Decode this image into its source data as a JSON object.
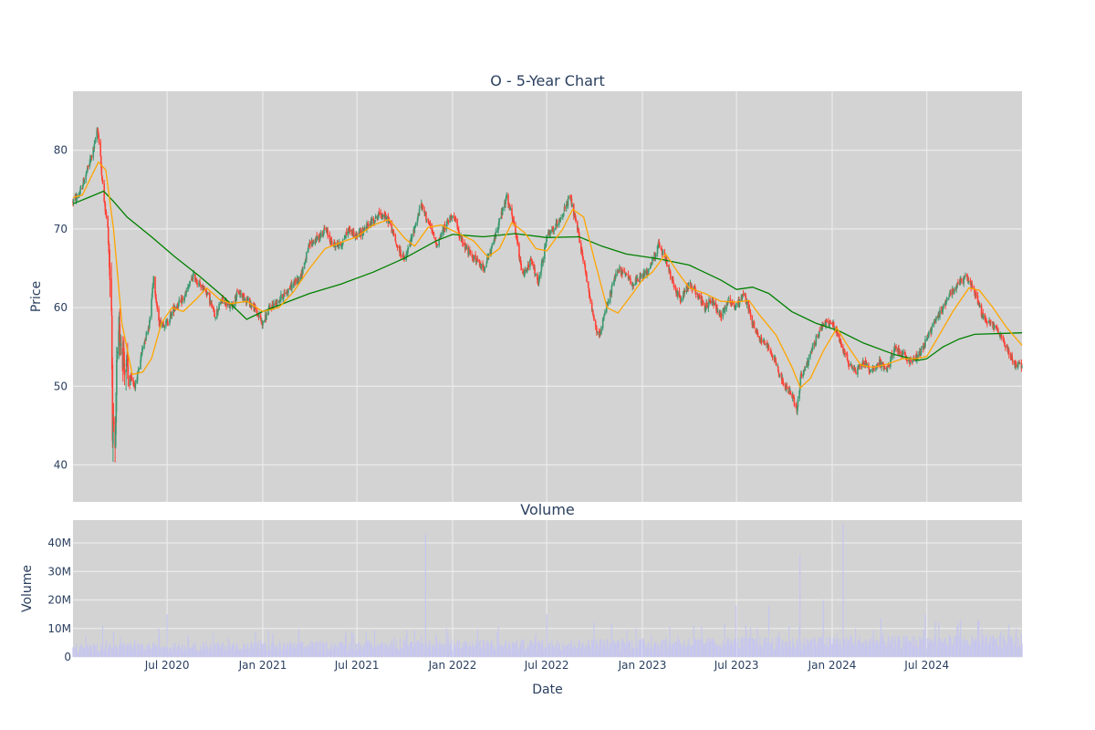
{
  "chart_data": [
    {
      "type": "candlestick",
      "title": "O - 5-Year Chart",
      "ylabel": "Price",
      "ylim": [
        35.3,
        87.5
      ],
      "yticks": [
        40,
        50,
        60,
        70,
        80
      ],
      "xrange": [
        "2020-01-02",
        "2024-12-31"
      ],
      "x_ticks": [
        "2020-07-01",
        "2021-01-01",
        "2021-07-01",
        "2022-01-01",
        "2022-07-01",
        "2023-01-01",
        "2023-07-01",
        "2024-01-01",
        "2024-07-01"
      ],
      "grid": true,
      "background": "#d3d3d3",
      "colors": {
        "up": "#3d9970",
        "down": "#ff4136",
        "ma_short": "#ffa500",
        "ma_long": "#008000"
      },
      "price_path": [
        [
          "2020-01-02",
          73.5
        ],
        [
          "2020-01-15",
          74.5
        ],
        [
          "2020-02-01",
          78
        ],
        [
          "2020-02-12",
          80.5
        ],
        [
          "2020-02-18",
          83
        ],
        [
          "2020-02-24",
          79
        ],
        [
          "2020-03-01",
          74
        ],
        [
          "2020-03-09",
          70
        ],
        [
          "2020-03-16",
          60
        ],
        [
          "2020-03-18",
          45
        ],
        [
          "2020-03-23",
          40.5
        ],
        [
          "2020-03-26",
          52
        ],
        [
          "2020-04-01",
          57
        ],
        [
          "2020-04-10",
          53
        ],
        [
          "2020-04-20",
          51
        ],
        [
          "2020-05-01",
          50
        ],
        [
          "2020-05-15",
          55
        ],
        [
          "2020-05-28",
          58
        ],
        [
          "2020-06-05",
          64
        ],
        [
          "2020-06-15",
          58
        ],
        [
          "2020-07-01",
          58
        ],
        [
          "2020-07-15",
          60
        ],
        [
          "2020-08-01",
          61
        ],
        [
          "2020-08-20",
          64
        ],
        [
          "2020-09-01",
          63
        ],
        [
          "2020-09-15",
          62
        ],
        [
          "2020-10-01",
          59
        ],
        [
          "2020-10-15",
          61
        ],
        [
          "2020-11-01",
          60
        ],
        [
          "2020-11-15",
          62
        ],
        [
          "2020-12-01",
          61
        ],
        [
          "2020-12-15",
          60
        ],
        [
          "2021-01-01",
          58
        ],
        [
          "2021-01-15",
          60
        ],
        [
          "2021-02-01",
          61
        ],
        [
          "2021-02-15",
          62
        ],
        [
          "2021-03-01",
          63
        ],
        [
          "2021-03-15",
          64
        ],
        [
          "2021-04-01",
          68
        ],
        [
          "2021-04-20",
          69
        ],
        [
          "2021-05-01",
          70
        ],
        [
          "2021-05-15",
          68
        ],
        [
          "2021-06-01",
          68
        ],
        [
          "2021-06-15",
          70
        ],
        [
          "2021-07-01",
          69
        ],
        [
          "2021-07-15",
          70
        ],
        [
          "2021-08-01",
          71
        ],
        [
          "2021-08-15",
          72
        ],
        [
          "2021-09-01",
          71
        ],
        [
          "2021-09-15",
          68
        ],
        [
          "2021-10-01",
          66
        ],
        [
          "2021-10-15",
          69
        ],
        [
          "2021-11-01",
          73
        ],
        [
          "2021-11-15",
          71
        ],
        [
          "2021-12-01",
          68
        ],
        [
          "2021-12-15",
          70
        ],
        [
          "2022-01-01",
          72
        ],
        [
          "2022-01-15",
          69
        ],
        [
          "2022-02-01",
          67
        ],
        [
          "2022-02-15",
          66
        ],
        [
          "2022-03-01",
          65
        ],
        [
          "2022-03-15",
          67
        ],
        [
          "2022-04-01",
          71
        ],
        [
          "2022-04-15",
          74
        ],
        [
          "2022-05-01",
          70
        ],
        [
          "2022-05-15",
          64
        ],
        [
          "2022-06-01",
          66
        ],
        [
          "2022-06-15",
          63
        ],
        [
          "2022-07-01",
          69
        ],
        [
          "2022-07-15",
          70
        ],
        [
          "2022-08-01",
          72
        ],
        [
          "2022-08-15",
          74
        ],
        [
          "2022-09-01",
          69
        ],
        [
          "2022-09-15",
          64
        ],
        [
          "2022-10-01",
          58
        ],
        [
          "2022-10-10",
          56
        ],
        [
          "2022-10-20",
          59
        ],
        [
          "2022-11-01",
          62
        ],
        [
          "2022-11-15",
          65
        ],
        [
          "2022-12-01",
          64
        ],
        [
          "2022-12-15",
          63
        ],
        [
          "2023-01-01",
          64
        ],
        [
          "2023-01-15",
          65
        ],
        [
          "2023-02-01",
          68
        ],
        [
          "2023-02-15",
          66
        ],
        [
          "2023-03-01",
          63
        ],
        [
          "2023-03-15",
          61
        ],
        [
          "2023-04-01",
          63
        ],
        [
          "2023-04-15",
          62
        ],
        [
          "2023-05-01",
          60
        ],
        [
          "2023-05-15",
          61
        ],
        [
          "2023-06-01",
          59
        ],
        [
          "2023-06-15",
          61
        ],
        [
          "2023-07-01",
          60
        ],
        [
          "2023-07-15",
          62
        ],
        [
          "2023-08-01",
          58
        ],
        [
          "2023-08-15",
          56
        ],
        [
          "2023-09-01",
          55
        ],
        [
          "2023-09-15",
          53
        ],
        [
          "2023-10-01",
          50
        ],
        [
          "2023-10-15",
          49
        ],
        [
          "2023-10-25",
          47
        ],
        [
          "2023-11-01",
          51
        ],
        [
          "2023-11-15",
          53
        ],
        [
          "2023-12-01",
          56
        ],
        [
          "2023-12-15",
          58
        ],
        [
          "2024-01-01",
          58
        ],
        [
          "2024-01-15",
          56
        ],
        [
          "2024-02-01",
          53
        ],
        [
          "2024-02-15",
          52
        ],
        [
          "2024-03-01",
          53
        ],
        [
          "2024-03-15",
          52
        ],
        [
          "2024-04-01",
          53
        ],
        [
          "2024-04-15",
          52
        ],
        [
          "2024-05-01",
          55
        ],
        [
          "2024-05-15",
          54
        ],
        [
          "2024-06-01",
          53
        ],
        [
          "2024-06-15",
          54
        ],
        [
          "2024-07-01",
          56
        ],
        [
          "2024-07-15",
          58
        ],
        [
          "2024-08-01",
          60
        ],
        [
          "2024-08-15",
          62
        ],
        [
          "2024-09-01",
          63
        ],
        [
          "2024-09-15",
          64
        ],
        [
          "2024-10-01",
          62
        ],
        [
          "2024-10-15",
          59
        ],
        [
          "2024-11-01",
          58
        ],
        [
          "2024-11-15",
          57
        ],
        [
          "2024-12-01",
          55
        ],
        [
          "2024-12-15",
          53
        ],
        [
          "2024-12-31",
          52.5
        ]
      ],
      "ma_long_path": [
        [
          "2020-01-02",
          73.2
        ],
        [
          "2020-02-01",
          74
        ],
        [
          "2020-03-01",
          74.8
        ],
        [
          "2020-03-20",
          73.5
        ],
        [
          "2020-04-15",
          71.5
        ],
        [
          "2020-06-01",
          69
        ],
        [
          "2020-07-15",
          66.5
        ],
        [
          "2020-09-01",
          64
        ],
        [
          "2020-10-15",
          61.5
        ],
        [
          "2020-12-01",
          58.5
        ],
        [
          "2021-01-01",
          59.5
        ],
        [
          "2021-02-01",
          60.3
        ],
        [
          "2021-03-01",
          61
        ],
        [
          "2021-04-01",
          61.8
        ],
        [
          "2021-06-01",
          63
        ],
        [
          "2021-08-01",
          64.5
        ],
        [
          "2021-10-01",
          66.3
        ],
        [
          "2021-12-01",
          68.5
        ],
        [
          "2022-01-01",
          69.3
        ],
        [
          "2022-03-01",
          69
        ],
        [
          "2022-05-01",
          69.4
        ],
        [
          "2022-07-01",
          68.9
        ],
        [
          "2022-09-01",
          69
        ],
        [
          "2022-10-15",
          67.8
        ],
        [
          "2022-12-01",
          66.8
        ],
        [
          "2023-02-01",
          66.2
        ],
        [
          "2023-04-01",
          65.4
        ],
        [
          "2023-06-01",
          63.5
        ],
        [
          "2023-07-01",
          62.3
        ],
        [
          "2023-08-01",
          62.6
        ],
        [
          "2023-09-01",
          61.8
        ],
        [
          "2023-10-15",
          59.5
        ],
        [
          "2023-12-01",
          58
        ],
        [
          "2024-01-15",
          57
        ],
        [
          "2024-03-01",
          55.5
        ],
        [
          "2024-05-01",
          54
        ],
        [
          "2024-06-15",
          53.3
        ],
        [
          "2024-07-01",
          53.5
        ],
        [
          "2024-08-01",
          55
        ],
        [
          "2024-09-01",
          56
        ],
        [
          "2024-10-01",
          56.6
        ],
        [
          "2024-12-31",
          56.8
        ]
      ],
      "ma_short_path": [
        [
          "2020-01-02",
          74
        ],
        [
          "2020-01-20",
          74.3
        ],
        [
          "2020-02-05",
          76.5
        ],
        [
          "2020-02-20",
          78.5
        ],
        [
          "2020-03-05",
          77.5
        ],
        [
          "2020-03-20",
          70
        ],
        [
          "2020-04-05",
          58
        ],
        [
          "2020-04-25",
          51.5
        ],
        [
          "2020-05-15",
          51.8
        ],
        [
          "2020-06-01",
          53.5
        ],
        [
          "2020-06-20",
          58
        ],
        [
          "2020-07-10",
          60
        ],
        [
          "2020-08-01",
          59.5
        ],
        [
          "2020-08-25",
          61
        ],
        [
          "2020-09-15",
          62.5
        ],
        [
          "2020-10-10",
          61
        ],
        [
          "2020-11-01",
          60.5
        ],
        [
          "2020-12-01",
          60.8
        ],
        [
          "2021-01-01",
          59.5
        ],
        [
          "2021-02-01",
          60
        ],
        [
          "2021-03-01",
          62
        ],
        [
          "2021-04-01",
          65
        ],
        [
          "2021-05-01",
          67.5
        ],
        [
          "2021-06-01",
          68.3
        ],
        [
          "2021-07-01",
          69
        ],
        [
          "2021-08-01",
          70.5
        ],
        [
          "2021-09-01",
          71.2
        ],
        [
          "2021-10-01",
          68.8
        ],
        [
          "2021-10-20",
          67.8
        ],
        [
          "2021-11-15",
          70.2
        ],
        [
          "2021-12-10",
          70.5
        ],
        [
          "2022-01-10",
          69.5
        ],
        [
          "2022-02-10",
          68.5
        ],
        [
          "2022-03-10",
          66.4
        ],
        [
          "2022-04-01",
          67.5
        ],
        [
          "2022-04-25",
          70.8
        ],
        [
          "2022-05-20",
          69.5
        ],
        [
          "2022-06-10",
          67.5
        ],
        [
          "2022-07-01",
          67.2
        ],
        [
          "2022-08-01",
          70
        ],
        [
          "2022-08-20",
          72.5
        ],
        [
          "2022-09-10",
          71.5
        ],
        [
          "2022-10-01",
          66
        ],
        [
          "2022-10-25",
          60
        ],
        [
          "2022-11-15",
          59.3
        ],
        [
          "2022-12-10",
          61.5
        ],
        [
          "2023-01-01",
          63.5
        ],
        [
          "2023-01-20",
          64.5
        ],
        [
          "2023-02-15",
          66.8
        ],
        [
          "2023-03-10",
          64.5
        ],
        [
          "2023-04-01",
          62.5
        ],
        [
          "2023-05-01",
          61.8
        ],
        [
          "2023-06-01",
          60.8
        ],
        [
          "2023-07-01",
          60.7
        ],
        [
          "2023-07-25",
          60.9
        ],
        [
          "2023-08-15",
          59
        ],
        [
          "2023-09-15",
          56.5
        ],
        [
          "2023-10-15",
          52.5
        ],
        [
          "2023-11-01",
          49.8
        ],
        [
          "2023-11-20",
          51
        ],
        [
          "2023-12-15",
          54.5
        ],
        [
          "2024-01-10",
          57.4
        ],
        [
          "2024-02-01",
          55
        ],
        [
          "2024-02-25",
          52.7
        ],
        [
          "2024-03-20",
          52.4
        ],
        [
          "2024-04-15",
          52.8
        ],
        [
          "2024-05-15",
          53.5
        ],
        [
          "2024-06-10",
          53.5
        ],
        [
          "2024-07-01",
          53.8
        ],
        [
          "2024-07-25",
          56.5
        ],
        [
          "2024-08-20",
          59.5
        ],
        [
          "2024-09-20",
          62.5
        ],
        [
          "2024-10-10",
          62.2
        ],
        [
          "2024-11-05",
          60
        ],
        [
          "2024-12-01",
          57.5
        ],
        [
          "2024-12-31",
          55.2
        ]
      ]
    },
    {
      "type": "bar",
      "title": "Volume",
      "xlabel": "Date",
      "ylabel": "Volume",
      "ylim": [
        0,
        48000000
      ],
      "yticks": [
        0,
        10000000,
        20000000,
        30000000,
        40000000
      ],
      "ytick_labels": [
        "0",
        "10M",
        "20M",
        "30M",
        "40M"
      ],
      "x_ticks": [
        "2020-07-01",
        "2021-01-01",
        "2021-07-01",
        "2022-01-01",
        "2022-07-01",
        "2023-01-01",
        "2023-07-01",
        "2024-01-01",
        "2024-07-01"
      ],
      "x_tick_labels": [
        "Jul 2020",
        "Jan 2021",
        "Jul 2021",
        "Jan 2022",
        "Jul 2022",
        "Jan 2023",
        "Jul 2023",
        "Jan 2024",
        "Jul 2024"
      ],
      "grid": true,
      "background": "#d3d3d3",
      "bar_color": "#c6c6ee",
      "baseline_level": 3500000,
      "spikes": [
        [
          "2020-02-28",
          11000000
        ],
        [
          "2020-03-20",
          9000000
        ],
        [
          "2020-06-15",
          10000000
        ],
        [
          "2020-07-01",
          15000000
        ],
        [
          "2020-12-10",
          5500000
        ],
        [
          "2021-01-02",
          9500000
        ],
        [
          "2021-03-20",
          10000000
        ],
        [
          "2021-09-10",
          7000000
        ],
        [
          "2021-11-10",
          43000000
        ],
        [
          "2021-12-20",
          10000000
        ],
        [
          "2022-06-10",
          8000000
        ],
        [
          "2022-07-01",
          15000000
        ],
        [
          "2022-09-30",
          12000000
        ],
        [
          "2022-12-20",
          10000000
        ],
        [
          "2023-03-10",
          7500000
        ],
        [
          "2023-06-30",
          18000000
        ],
        [
          "2023-07-20",
          9500000
        ],
        [
          "2023-08-10",
          10000000
        ],
        [
          "2023-09-01",
          18000000
        ],
        [
          "2023-09-20",
          8500000
        ],
        [
          "2023-10-31",
          36000000
        ],
        [
          "2023-11-25",
          9000000
        ],
        [
          "2023-12-15",
          20000000
        ],
        [
          "2024-01-22",
          47000000
        ],
        [
          "2024-02-15",
          10000000
        ],
        [
          "2024-03-20",
          9500000
        ],
        [
          "2024-06-28",
          15000000
        ],
        [
          "2024-08-30",
          12000000
        ],
        [
          "2024-10-15",
          10000000
        ],
        [
          "2024-11-20",
          9000000
        ],
        [
          "2024-12-20",
          10000000
        ]
      ]
    }
  ]
}
